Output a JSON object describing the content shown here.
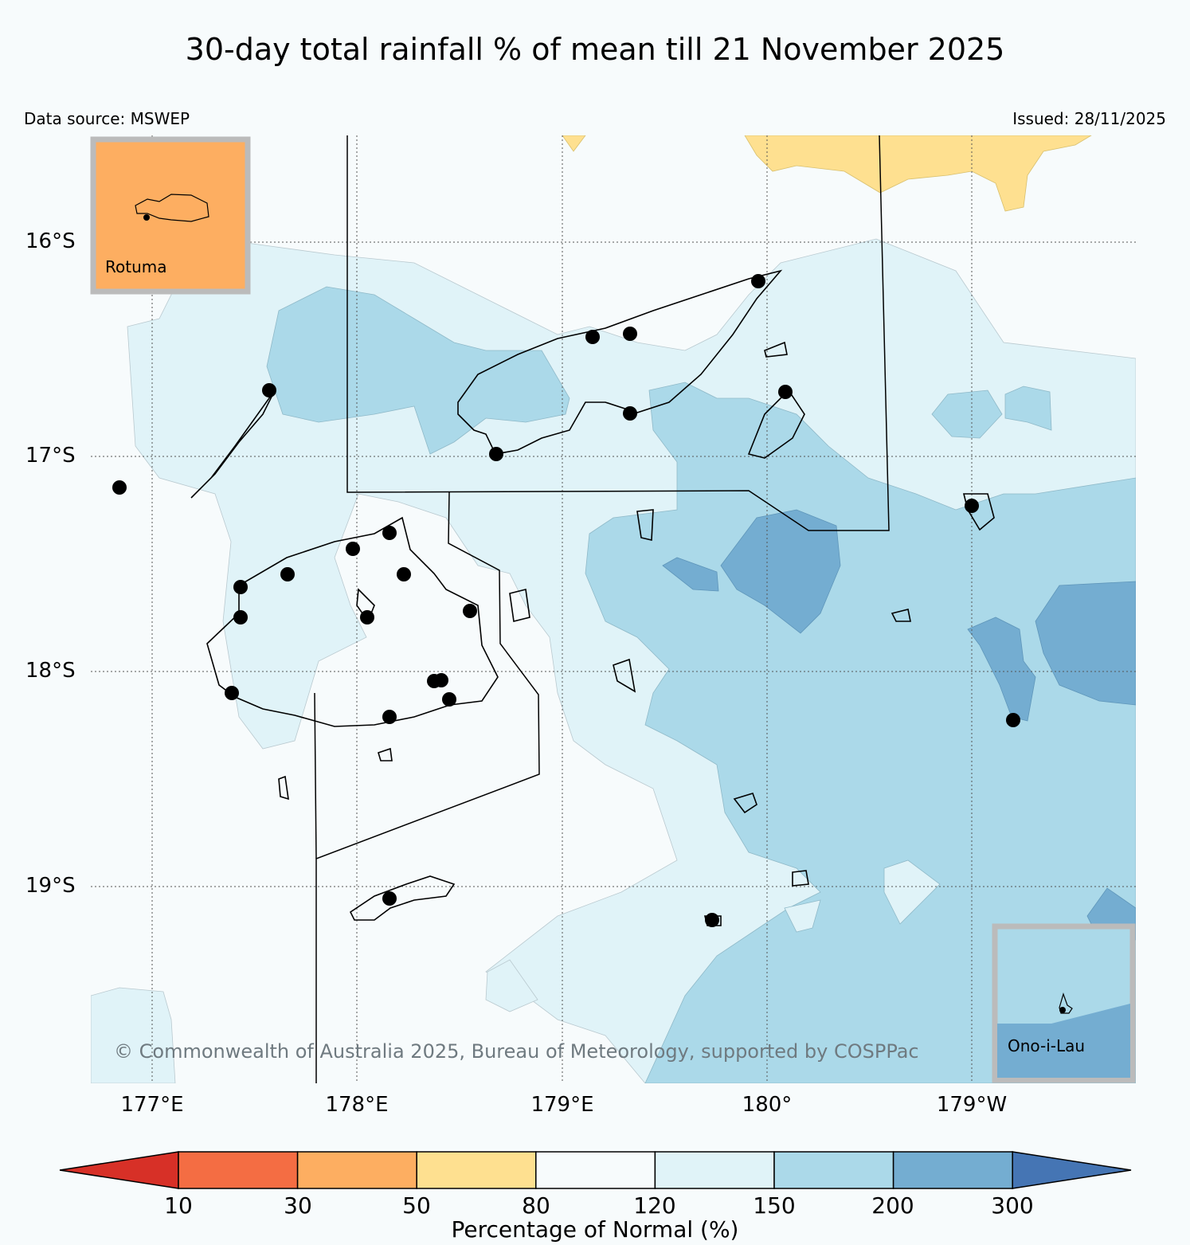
{
  "title": "30-day total rainfall % of mean till 21 November 2025",
  "data_source": "Data source: MSWEP",
  "issued": "Issued: 28/11/2025",
  "latitudes": [
    "16°S",
    "17°S",
    "18°S",
    "19°S"
  ],
  "longitudes": [
    "177°E",
    "178°E",
    "179°E",
    "180°",
    "179°W"
  ],
  "insets": {
    "rotuma": "Rotuma",
    "ono_i_lau": "Ono-i-Lau"
  },
  "copyright": "© Commonwealth of Australia 2025, Bureau of Meteorology, supported by COSPPac",
  "colorbar": {
    "label": "Percentage of Normal (%)",
    "ticks": [
      "10",
      "30",
      "50",
      "80",
      "120",
      "150",
      "200",
      "300"
    ],
    "colors": [
      "#d73027",
      "#f46d43",
      "#fdae61",
      "#fee090",
      "#f7fbfc",
      "#e0f3f8",
      "#abd9e9",
      "#74add1",
      "#4575b4"
    ]
  },
  "legend_categories": [
    {
      "range": "<10",
      "color": "#d73027"
    },
    {
      "range": "10-30",
      "color": "#f46d43"
    },
    {
      "range": "30-50",
      "color": "#fdae61"
    },
    {
      "range": "50-80",
      "color": "#fee090"
    },
    {
      "range": "80-120",
      "color": "#f7fbfc"
    },
    {
      "range": "120-150",
      "color": "#e0f3f8"
    },
    {
      "range": "150-200",
      "color": "#abd9e9"
    },
    {
      "range": "200-300",
      "color": "#74add1"
    },
    {
      "range": ">300",
      "color": "#4575b4"
    }
  ]
}
